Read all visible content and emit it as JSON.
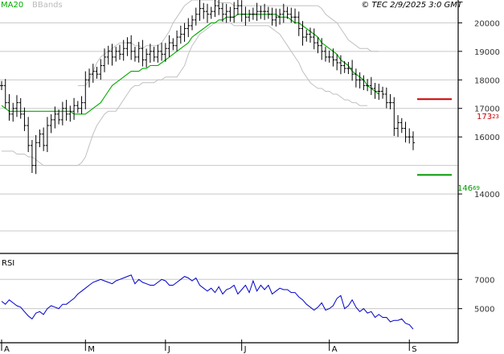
{
  "header": {
    "legend": [
      "MA20",
      "BBands"
    ],
    "copyright": "© TEC 2/9/2025 3:0 GMT"
  },
  "colors": {
    "price": "#000000",
    "ma": "#00aa00",
    "bands": "#c0c0c0",
    "grid": "#c8c8c8",
    "rsi": "#0000cc",
    "resistance": "#cc0000",
    "support": "#009900"
  },
  "annotations": {
    "resistance": {
      "label": "173",
      "sup": "23",
      "value": 173.23
    },
    "support": {
      "label": "146",
      "sup": "69",
      "value": 146.69
    }
  },
  "chart_data": [
    {
      "type": "ohlc",
      "panel": "price",
      "ylim": [
        120,
        208
      ],
      "yticks": [
        {
          "value": 140,
          "label": "14000"
        },
        {
          "value": 160,
          "label": "16000"
        },
        {
          "value": 170,
          "label": "17000"
        },
        {
          "value": 180,
          "label": "18000"
        },
        {
          "value": 190,
          "label": "19000"
        },
        {
          "value": 200,
          "label": "20000"
        }
      ],
      "xticks": [
        {
          "index": 0,
          "label": "A"
        },
        {
          "index": 22,
          "label": "M"
        },
        {
          "index": 43,
          "label": "J"
        },
        {
          "index": 63,
          "label": "J"
        },
        {
          "index": 86,
          "label": "A"
        },
        {
          "index": 107,
          "label": "S"
        }
      ],
      "close": [
        178,
        172,
        168,
        170,
        172,
        168,
        164,
        157,
        150,
        158,
        161,
        157,
        164,
        166,
        168,
        166,
        170,
        168,
        169,
        171,
        170,
        172,
        180,
        182,
        183,
        182,
        185,
        188,
        190,
        188,
        190,
        189,
        191,
        193,
        190,
        188,
        191,
        187,
        189,
        190,
        188,
        190,
        189,
        191,
        193,
        192,
        195,
        196,
        198,
        199,
        201,
        203,
        205,
        204,
        203,
        204,
        206,
        205,
        203,
        204,
        202,
        205,
        206,
        203,
        202,
        203,
        203,
        204,
        204,
        204,
        203,
        201,
        202,
        203,
        204,
        203,
        202,
        202,
        198,
        195,
        196,
        195,
        193,
        192,
        190,
        188,
        188,
        187,
        186,
        185,
        184,
        184,
        182,
        180,
        180,
        178,
        178,
        177,
        176,
        176,
        175,
        172,
        172,
        163,
        165,
        163,
        160,
        160,
        158
      ],
      "bbands_upper": [
        null,
        null,
        null,
        null,
        null,
        null,
        null,
        null,
        null,
        null,
        null,
        null,
        null,
        null,
        null,
        null,
        null,
        null,
        null,
        null,
        178,
        178,
        178,
        180,
        183,
        186,
        188,
        189,
        190,
        191,
        192,
        193,
        193,
        193,
        193,
        192,
        192,
        191,
        192,
        192,
        192,
        192,
        193,
        195,
        197,
        200,
        202,
        204,
        206,
        207,
        208,
        208,
        208,
        208,
        208,
        208,
        208,
        207,
        207,
        207,
        207,
        206,
        206,
        206,
        206,
        206,
        206,
        206,
        206,
        206,
        206,
        206,
        206,
        206,
        206,
        206,
        206,
        206,
        206,
        206,
        206,
        206,
        206,
        206,
        205,
        203,
        202,
        201,
        200,
        198,
        196,
        194,
        193,
        192,
        191,
        191,
        191,
        190,
        190,
        190,
        null,
        null,
        null,
        null,
        null,
        null,
        null,
        null,
        null
      ],
      "ma20": [
        171,
        170,
        169,
        169,
        169,
        169,
        169,
        169,
        169,
        169,
        169,
        169,
        169,
        169,
        169,
        169,
        169,
        169,
        169,
        168,
        168,
        168,
        168,
        169,
        170,
        171,
        172,
        174,
        176,
        178,
        179,
        180,
        181,
        182,
        183,
        183,
        183,
        184,
        184,
        185,
        185,
        185,
        186,
        187,
        188,
        189,
        190,
        191,
        192,
        193,
        195,
        196,
        197,
        198,
        199,
        200,
        200,
        201,
        201,
        202,
        202,
        202,
        203,
        203,
        203,
        203,
        203,
        203,
        203,
        203,
        203,
        203,
        203,
        202,
        202,
        202,
        201,
        200,
        200,
        199,
        198,
        197,
        196,
        195,
        193,
        192,
        191,
        190,
        189,
        187,
        186,
        185,
        183,
        182,
        181,
        180,
        178,
        177,
        176,
        175,
        null,
        null,
        null,
        null,
        null,
        null,
        null,
        null,
        null
      ],
      "bbands_lower": [
        155,
        155,
        155,
        155,
        154,
        154,
        154,
        153,
        153,
        152,
        151,
        150,
        150,
        150,
        150,
        150,
        150,
        150,
        150,
        150,
        150,
        151,
        153,
        157,
        161,
        164,
        166,
        168,
        169,
        169,
        169,
        171,
        173,
        175,
        177,
        178,
        178,
        179,
        179,
        179,
        179,
        180,
        180,
        181,
        181,
        181,
        181,
        183,
        185,
        189,
        192,
        194,
        196,
        197,
        198,
        199,
        200,
        200,
        200,
        200,
        200,
        199,
        199,
        199,
        199,
        199,
        199,
        199,
        199,
        199,
        199,
        198,
        197,
        196,
        194,
        192,
        190,
        188,
        186,
        183,
        181,
        179,
        178,
        177,
        177,
        176,
        176,
        175,
        175,
        174,
        173,
        173,
        172,
        172,
        171,
        171,
        171,
        null,
        null,
        null,
        null,
        null,
        null,
        null,
        null,
        null,
        null,
        null,
        null
      ]
    },
    {
      "type": "line",
      "panel": "rsi",
      "title": "RSI",
      "ylim": [
        30,
        85
      ],
      "yticks": [
        {
          "value": 70,
          "label": "7000"
        },
        {
          "value": 50,
          "label": "5000"
        }
      ],
      "values": [
        55,
        53,
        56,
        54,
        52,
        51,
        48,
        45,
        43,
        47,
        48,
        46,
        50,
        52,
        51,
        50,
        53,
        53,
        55,
        57,
        60,
        62,
        64,
        66,
        68,
        69,
        70,
        69,
        68,
        67,
        69,
        70,
        71,
        72,
        73,
        67,
        70,
        68,
        67,
        66,
        66,
        68,
        70,
        69,
        66,
        66,
        68,
        70,
        72,
        71,
        69,
        71,
        66,
        64,
        62,
        64,
        61,
        65,
        60,
        63,
        64,
        66,
        60,
        63,
        66,
        61,
        69,
        62,
        66,
        63,
        66,
        60,
        62,
        64,
        63,
        63,
        61,
        61,
        58,
        56,
        53,
        51,
        49,
        51,
        54,
        49,
        50,
        52,
        57,
        59,
        50,
        52,
        56,
        51,
        48,
        50,
        47,
        48,
        44,
        46,
        44,
        44,
        41,
        42,
        42,
        43,
        40,
        39,
        36
      ]
    }
  ]
}
